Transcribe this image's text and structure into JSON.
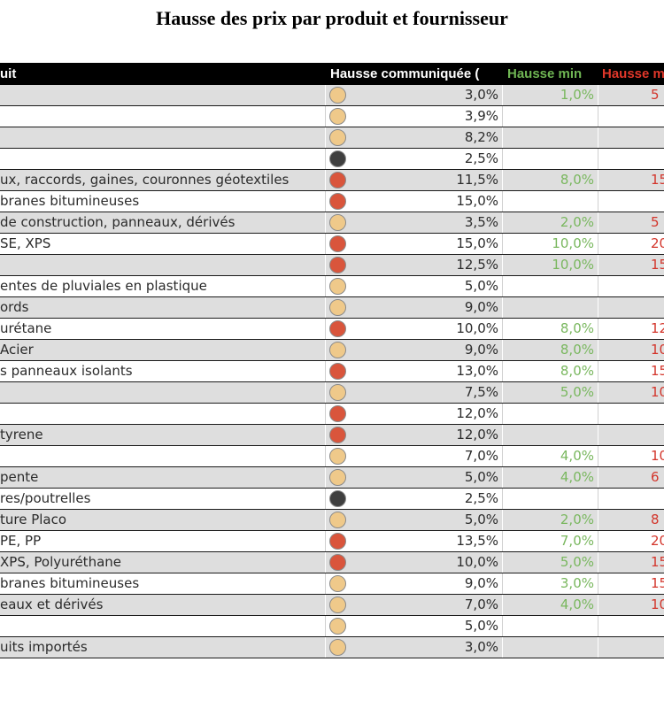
{
  "title": "Hausse des prix par produit et fournisseur",
  "colors": {
    "header_bg": "#000000",
    "header_text": "#ffffff",
    "min_color": "#6fb553",
    "max_color": "#e0372a",
    "row_gray": "#dedede",
    "dot_tan": "#efc98a",
    "dot_red": "#d9553c",
    "dot_dark": "#3f3f3f"
  },
  "header": {
    "produit": "uit",
    "communiquee": "Hausse communiquée (",
    "min": "Hausse min",
    "max": "Hausse m"
  },
  "rows": [
    {
      "product": "",
      "dot": "tan",
      "com": "3,0%",
      "min": "1,0%",
      "max": "5"
    },
    {
      "product": "",
      "dot": "tan",
      "com": "3,9%",
      "min": "",
      "max": ""
    },
    {
      "product": "",
      "dot": "tan",
      "com": "8,2%",
      "min": "",
      "max": ""
    },
    {
      "product": "",
      "dot": "dark",
      "com": "2,5%",
      "min": "",
      "max": ""
    },
    {
      "product": "ux, raccords, gaines, couronnes géotextiles",
      "dot": "red",
      "com": "11,5%",
      "min": "8,0%",
      "max": "15"
    },
    {
      "product": "branes bitumineuses",
      "dot": "red",
      "com": "15,0%",
      "min": "",
      "max": ""
    },
    {
      "product": "de construction, panneaux, dérivés",
      "dot": "tan",
      "com": "3,5%",
      "min": "2,0%",
      "max": "5"
    },
    {
      "product": "SE, XPS",
      "dot": "red",
      "com": "15,0%",
      "min": "10,0%",
      "max": "20"
    },
    {
      "product": "",
      "dot": "red",
      "com": "12,5%",
      "min": "10,0%",
      "max": "15"
    },
    {
      "product": "entes de pluviales en plastique",
      "dot": "tan",
      "com": "5,0%",
      "min": "",
      "max": ""
    },
    {
      "product": "ords",
      "dot": "tan",
      "com": "9,0%",
      "min": "",
      "max": ""
    },
    {
      "product": "urétane",
      "dot": "red",
      "com": "10,0%",
      "min": "8,0%",
      "max": "12"
    },
    {
      "product": "Acier",
      "dot": "tan",
      "com": "9,0%",
      "min": "8,0%",
      "max": "10"
    },
    {
      "product": "s panneaux isolants",
      "dot": "red",
      "com": "13,0%",
      "min": "8,0%",
      "max": "15"
    },
    {
      "product": "",
      "dot": "tan",
      "com": "7,5%",
      "min": "5,0%",
      "max": "10"
    },
    {
      "product": "",
      "dot": "red",
      "com": "12,0%",
      "min": "",
      "max": ""
    },
    {
      "product": "tyrene",
      "dot": "red",
      "com": "12,0%",
      "min": "",
      "max": ""
    },
    {
      "product": "",
      "dot": "tan",
      "com": "7,0%",
      "min": "4,0%",
      "max": "10"
    },
    {
      "product": "pente",
      "dot": "tan",
      "com": "5,0%",
      "min": "4,0%",
      "max": "6"
    },
    {
      "product": "res/poutrelles",
      "dot": "dark",
      "com": "2,5%",
      "min": "",
      "max": ""
    },
    {
      "product": "ture Placo",
      "dot": "tan",
      "com": "5,0%",
      "min": "2,0%",
      "max": "8"
    },
    {
      "product": "PE, PP",
      "dot": "red",
      "com": "13,5%",
      "min": "7,0%",
      "max": "20"
    },
    {
      "product": "XPS, Polyuréthane",
      "dot": "red",
      "com": "10,0%",
      "min": "5,0%",
      "max": "15"
    },
    {
      "product": "branes bitumineuses",
      "dot": "tan",
      "com": "9,0%",
      "min": "3,0%",
      "max": "15"
    },
    {
      "product": "eaux et dérivés",
      "dot": "tan",
      "com": "7,0%",
      "min": "4,0%",
      "max": "10"
    },
    {
      "product": "",
      "dot": "tan",
      "com": "5,0%",
      "min": "",
      "max": ""
    },
    {
      "product": "uits importés",
      "dot": "tan",
      "com": "3,0%",
      "min": "",
      "max": ""
    }
  ]
}
